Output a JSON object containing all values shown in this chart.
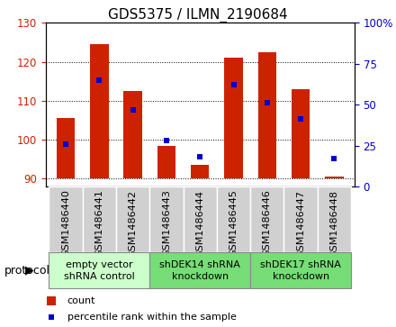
{
  "title": "GDS5375 / ILMN_2190684",
  "samples": [
    "GSM1486440",
    "GSM1486441",
    "GSM1486442",
    "GSM1486443",
    "GSM1486444",
    "GSM1486445",
    "GSM1486446",
    "GSM1486447",
    "GSM1486448"
  ],
  "counts": [
    105.5,
    124.5,
    112.5,
    98.5,
    93.5,
    121.0,
    122.5,
    113.0,
    90.5
  ],
  "count_base": 90,
  "percentile_ranks": [
    26,
    65,
    47,
    28,
    18,
    62,
    51,
    41,
    17
  ],
  "ylim_left": [
    88,
    130
  ],
  "ylim_right": [
    0,
    100
  ],
  "yticks_left": [
    90,
    100,
    110,
    120,
    130
  ],
  "yticks_right": [
    0,
    25,
    50,
    75,
    100
  ],
  "bar_color": "#cc2200",
  "dot_color": "#0000cc",
  "plot_bg": "#e8e8e8",
  "label_bg": "#d0d0d0",
  "protocols": [
    {
      "label": "empty vector\nshRNA control",
      "start": 0,
      "end": 3,
      "color": "#ccffcc"
    },
    {
      "label": "shDEK14 shRNA\nknockdown",
      "start": 3,
      "end": 6,
      "color": "#77dd77"
    },
    {
      "label": "shDEK17 shRNA\nknockdown",
      "start": 6,
      "end": 9,
      "color": "#77dd77"
    }
  ],
  "legend_items": [
    {
      "label": "count",
      "color": "#cc2200",
      "marker_size": 7
    },
    {
      "label": "percentile rank within the sample",
      "color": "#0000cc",
      "marker_size": 5
    }
  ],
  "bar_width": 0.55,
  "xlim": [
    -0.6,
    8.6
  ],
  "title_fontsize": 11,
  "tick_fontsize": 8.5,
  "label_fontsize": 8,
  "protocol_fontsize": 8,
  "legend_fontsize": 8
}
